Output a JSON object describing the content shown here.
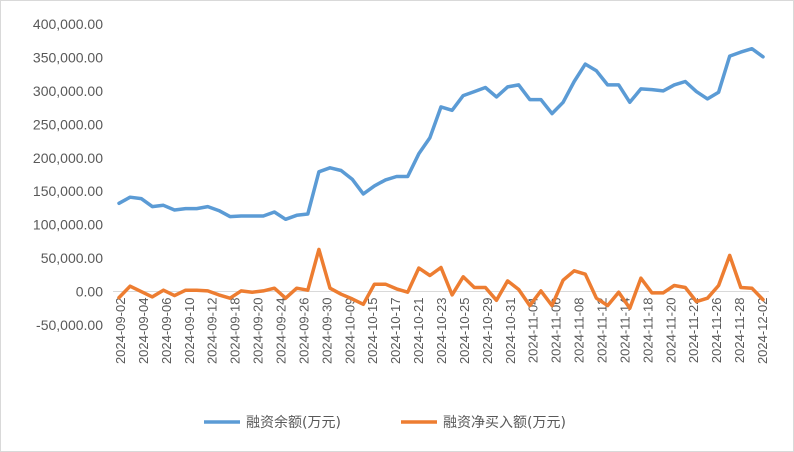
{
  "chart_data": {
    "type": "line",
    "title": "",
    "xlabel": "",
    "ylabel": "",
    "ylim": [
      -50000,
      400000
    ],
    "y_ticks": [
      "-50,000.00",
      "0.00",
      "50,000.00",
      "100,000.00",
      "150,000.00",
      "200,000.00",
      "250,000.00",
      "300,000.00",
      "350,000.00",
      "400,000.00"
    ],
    "y_tick_values": [
      -50000,
      0,
      50000,
      100000,
      150000,
      200000,
      250000,
      300000,
      350000,
      400000
    ],
    "grid": false,
    "legend_position": "bottom",
    "x_tick_labels": [
      "2024-09-02",
      "2024-09-04",
      "2024-09-06",
      "2024-09-10",
      "2024-09-12",
      "2024-09-18",
      "2024-09-20",
      "2024-09-24",
      "2024-09-26",
      "2024-09-30",
      "2024-10-09",
      "2024-10-15",
      "2024-10-17",
      "2024-10-21",
      "2024-10-23",
      "2024-10-25",
      "2024-10-29",
      "2024-10-31",
      "2024-11-04",
      "2024-11-06",
      "2024-11-08",
      "2024-11-12",
      "2024-11-14",
      "2024-11-18",
      "2024-11-20",
      "2024-11-22",
      "2024-11-26",
      "2024-11-28",
      "2024-12-02"
    ],
    "series": [
      {
        "name": "融资余额(万元)",
        "color": "#5b9bd5",
        "values": [
          132000,
          141000,
          139000,
          127000,
          129000,
          122000,
          124000,
          124000,
          127000,
          121000,
          112000,
          113000,
          113000,
          113000,
          119000,
          108000,
          114000,
          116000,
          179000,
          185000,
          181000,
          168000,
          146000,
          158000,
          167000,
          172000,
          172000,
          206000,
          230000,
          276000,
          271000,
          293000,
          299000,
          305000,
          291000,
          306000,
          309000,
          287000,
          287000,
          266000,
          283000,
          314000,
          340000,
          330000,
          309000,
          309000,
          283000,
          303000,
          302000,
          300000,
          309000,
          314000,
          299000,
          288000,
          298000,
          352000,
          358000,
          363000,
          351000
        ]
      },
      {
        "name": "融资净买入额(万元)",
        "color": "#ed7d31",
        "values": [
          -9000,
          8000,
          0,
          -8000,
          2000,
          -6000,
          2000,
          2000,
          1000,
          -5000,
          -10000,
          1000,
          -1000,
          1000,
          5000,
          -10000,
          5000,
          2000,
          63000,
          5000,
          -4000,
          -11000,
          -19000,
          11000,
          11000,
          4000,
          -1000,
          35000,
          24000,
          36000,
          -5000,
          22000,
          6000,
          6000,
          -13000,
          16000,
          3000,
          -21000,
          1000,
          -21000,
          17000,
          31000,
          26000,
          -10000,
          -21000,
          -1000,
          -25000,
          20000,
          -2000,
          -2000,
          9000,
          6000,
          -15000,
          -10000,
          9000,
          54000,
          6000,
          5000,
          -12000
        ]
      }
    ]
  },
  "legend": {
    "items": [
      {
        "label": "融资余额(万元)",
        "color": "#5b9bd5"
      },
      {
        "label": "融资净买入额(万元)",
        "color": "#ed7d31"
      }
    ]
  }
}
